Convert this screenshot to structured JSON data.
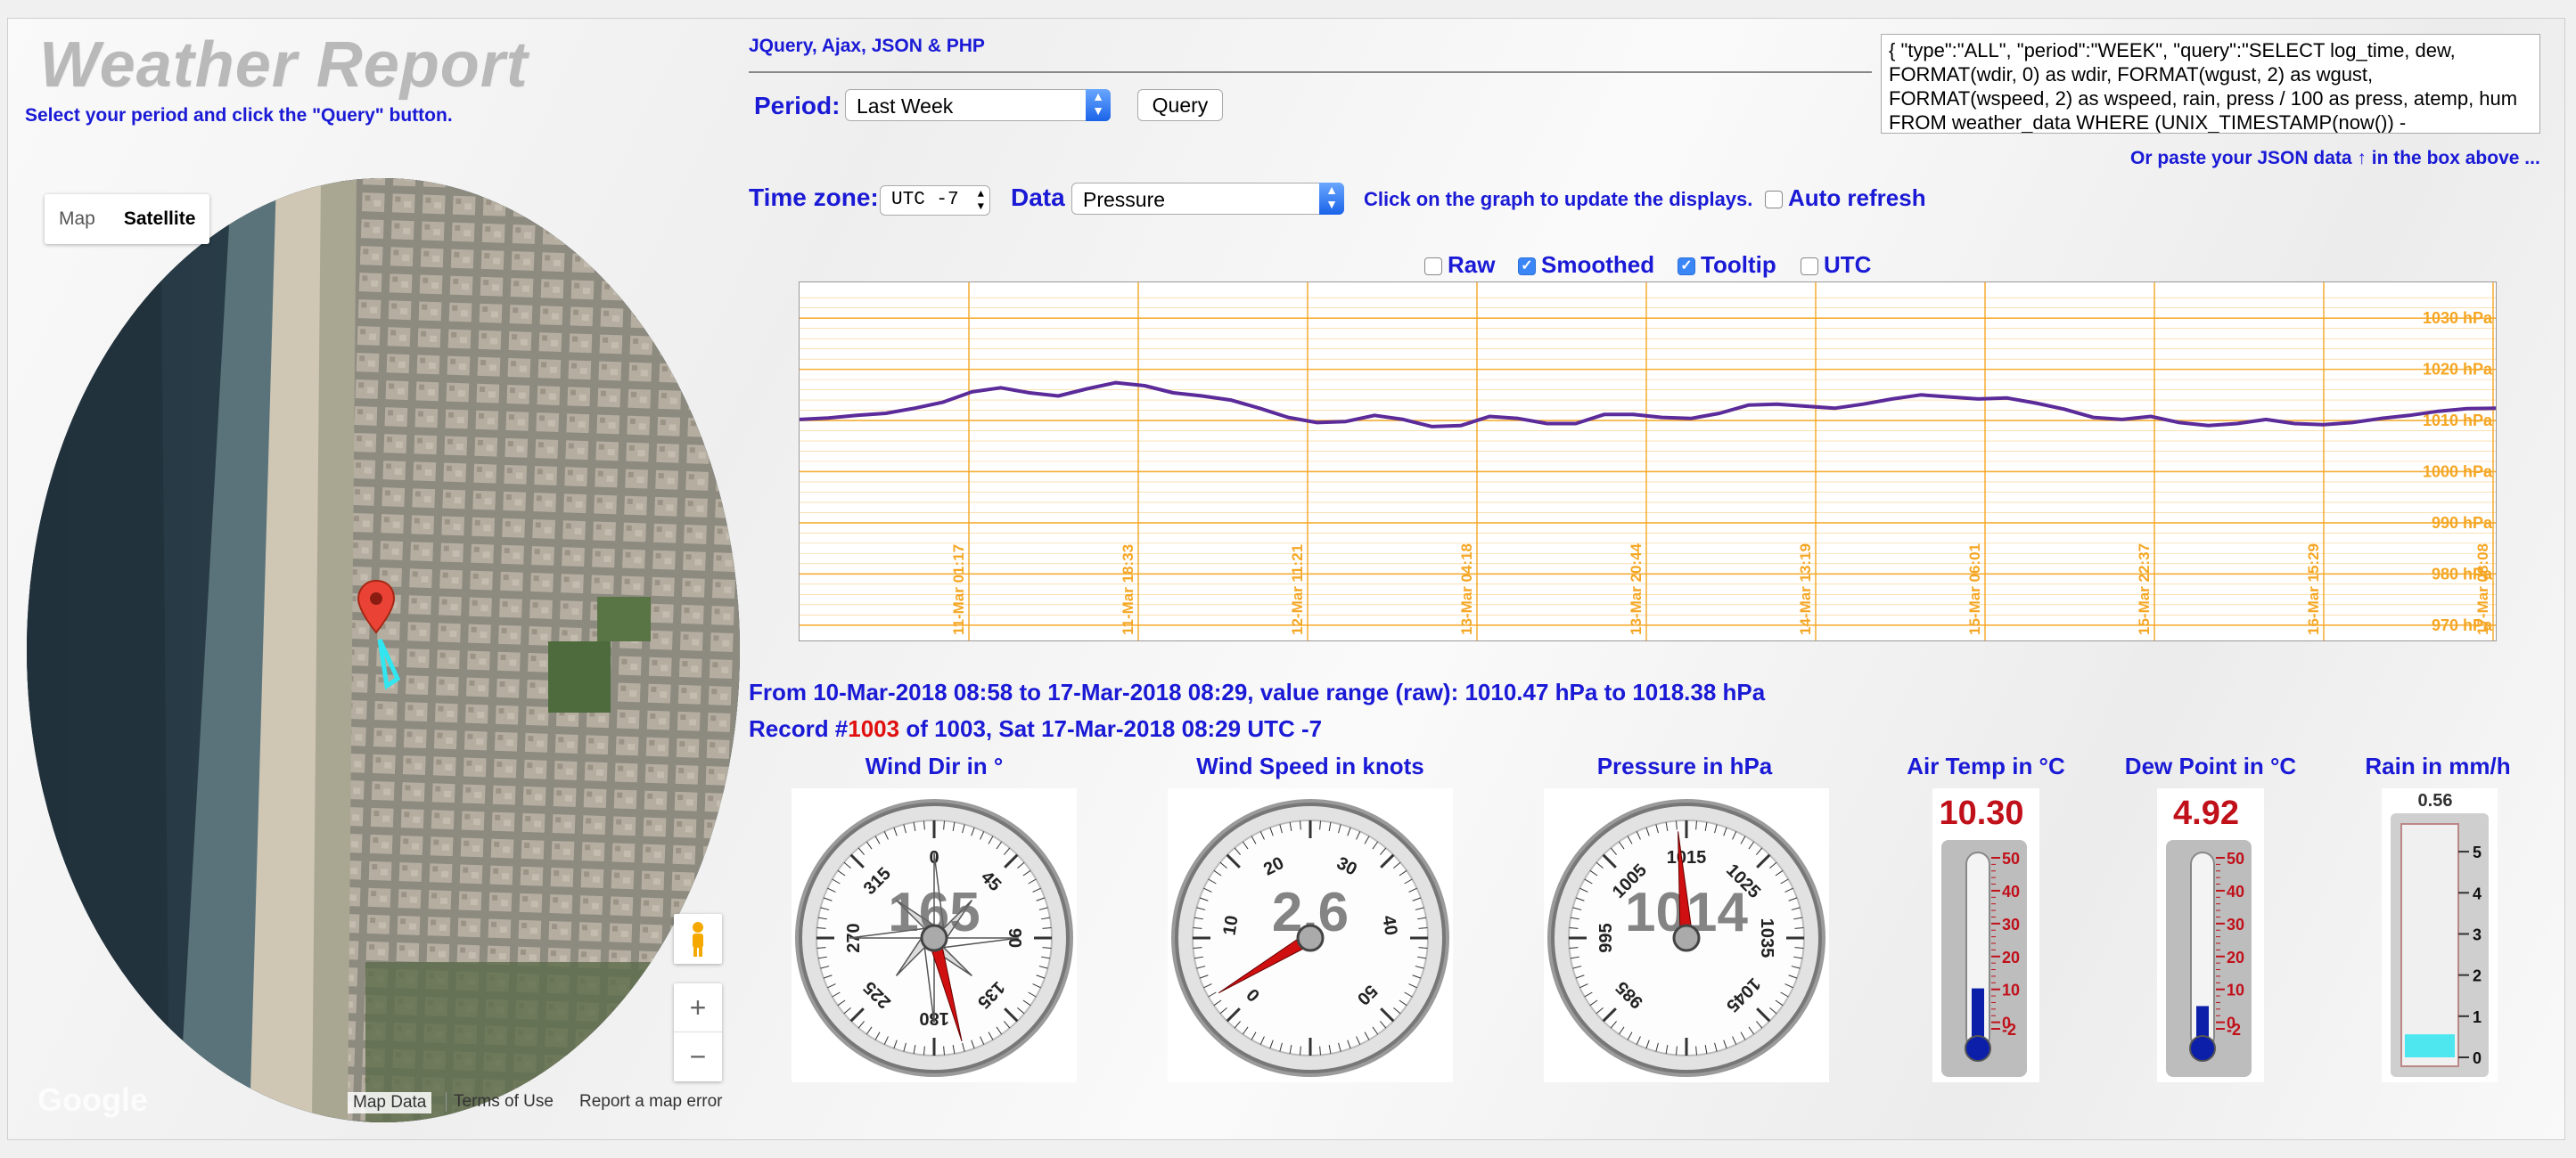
{
  "header": {
    "title": "Weather Report",
    "subtitle": "Select your period and click the \"Query\" button.",
    "tech_label": "JQuery, Ajax, JSON & PHP"
  },
  "controls": {
    "period_label": "Period:",
    "period_value": "Last Week",
    "query_button": "Query",
    "timezone_label": "Time zone:",
    "timezone_value": "UTC -7",
    "data_label": "Data",
    "data_value": "Pressure",
    "click_hint": "Click on the graph to update the displays.",
    "auto_refresh_label": "Auto refresh",
    "auto_refresh_checked": false,
    "json_text": "{ \"type\":\"ALL\", \"period\":\"WEEK\", \"query\":\"SELECT log_time, dew, FORMAT(wdir, 0) as wdir, FORMAT(wgust, 2) as wgust, FORMAT(wspeed, 2) as wspeed, rain, press / 100 as press, atemp, hum FROM weather_data WHERE (UNIX_TIMESTAMP(now()) -",
    "paste_hint": "Or paste your JSON data ↑ in the box above ..."
  },
  "options": [
    {
      "label": "Raw",
      "checked": false
    },
    {
      "label": "Smoothed",
      "checked": true
    },
    {
      "label": "Tooltip",
      "checked": true
    },
    {
      "label": "UTC",
      "checked": false
    }
  ],
  "map": {
    "type_map": "Map",
    "type_satellite": "Satellite",
    "zoom_in": "+",
    "zoom_out": "−",
    "google_logo": "Google",
    "map_data": "Map Data",
    "terms": "Terms of Use",
    "report": "Report a map error",
    "pin_icon": "map-pin-icon",
    "pegman_icon": "pegman-icon"
  },
  "chart_data": {
    "type": "line",
    "series": [
      {
        "values": [
          1010.2,
          1010.5,
          1011.0,
          1011.4,
          1012.4,
          1013.6,
          1015.6,
          1016.4,
          1015.4,
          1014.8,
          1016.2,
          1017.4,
          1016.8,
          1015.4,
          1014.8,
          1014.0,
          1012.4,
          1010.6,
          1009.6,
          1009.8,
          1011.0,
          1010.2,
          1008.8,
          1009.0,
          1010.8,
          1010.4,
          1009.4,
          1009.4,
          1011.2,
          1011.2,
          1010.6,
          1010.4,
          1011.4,
          1013.0,
          1013.2,
          1012.8,
          1012.4,
          1013.2,
          1014.2,
          1015.0,
          1014.6,
          1014.2,
          1014.4,
          1013.4,
          1012.2,
          1010.6,
          1010.2,
          1010.8,
          1009.6,
          1009.0,
          1009.4,
          1010.2,
          1009.4,
          1009.2,
          1009.6,
          1010.4,
          1011.0,
          1011.8,
          1012.3,
          1012.4
        ]
      }
    ],
    "x_tick_labels": [
      "11-Mar 01:17",
      "11-Mar 18:33",
      "12-Mar 11:21",
      "13-Mar 04:18",
      "13-Mar 20:44",
      "14-Mar 13:19",
      "15-Mar 06:01",
      "15-Mar 22:37",
      "16-Mar 15:29",
      "17-Mar 08:08"
    ],
    "y_tick_labels": [
      "1030 hPa",
      "1020 hPa",
      "1010 hPa",
      "1000 hPa",
      "990 hPa",
      "980 hPa",
      "970 hPa"
    ],
    "ylim": [
      967,
      1037
    ],
    "grid": true,
    "line_color": "#5b2b9a",
    "grid_color": "#f5a623"
  },
  "info": {
    "range_text": "From 10-Mar-2018 08:58 to 17-Mar-2018 08:29, value range (raw): 1010.47 hPa to 1018.38 hPa",
    "record_prefix": "Record #",
    "record_number": "1003",
    "record_suffix": " of 1003, Sat 17-Mar-2018 08:29 UTC -7"
  },
  "gauges": {
    "wind_dir": {
      "title": "Wind Dir in °",
      "value": "165",
      "ticks": [
        "0",
        "45",
        "90",
        "135",
        "180",
        "225",
        "270",
        "315"
      ]
    },
    "wind_speed": {
      "title": "Wind Speed in knots",
      "value": "2.6",
      "ticks": [
        "0",
        "10",
        "20",
        "30",
        "40",
        "50"
      ]
    },
    "pressure": {
      "title": "Pressure in hPa",
      "value": "1014",
      "ticks": [
        "985",
        "995",
        "1005",
        "1015",
        "1025",
        "1035",
        "1045"
      ]
    },
    "air_temp": {
      "title": "Air Temp in °C",
      "value": "10.30",
      "ticks": [
        "50",
        "40",
        "30",
        "20",
        "10",
        "0",
        "-2"
      ]
    },
    "dew_point": {
      "title": "Dew Point in °C",
      "value": "4.92",
      "ticks": [
        "50",
        "40",
        "30",
        "20",
        "10",
        "0",
        "-2"
      ]
    },
    "rain": {
      "title": "Rain in mm/h",
      "value": "0.56",
      "ticks": [
        "5",
        "4",
        "3",
        "2",
        "1",
        "0"
      ]
    }
  },
  "colors": {
    "accent_blue": "#1a1ad6",
    "record_red": "#e01010",
    "thermo_fill": "#0b1fa8",
    "rain_fill": "#4ee6ef"
  }
}
